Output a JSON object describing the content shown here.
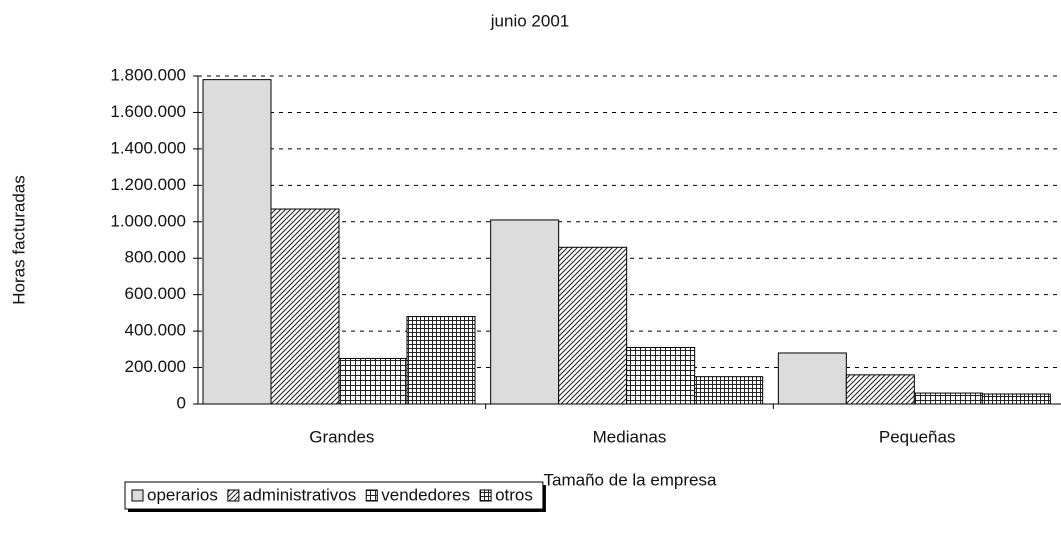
{
  "chart_data": {
    "type": "bar",
    "title": "junio 2001",
    "x_label": "Tamaño de la empresa",
    "y_label": "Horas facturadas",
    "categories": [
      "Grandes",
      "Medianas",
      "Pequeñas"
    ],
    "series": [
      {
        "name": "operarios",
        "color": "#dcdcdc",
        "pattern": "solid",
        "values": [
          1780000,
          1010000,
          280000
        ]
      },
      {
        "name": "administrativos",
        "color": "#ffffff",
        "pattern": "diagonal",
        "values": [
          1070000,
          860000,
          160000
        ]
      },
      {
        "name": "vendedores",
        "color": "#ffffff",
        "pattern": "grid",
        "values": [
          250000,
          310000,
          60000
        ]
      },
      {
        "name": "otros",
        "color": "#ffffff",
        "pattern": "dense-grid",
        "values": [
          480000,
          150000,
          55000
        ]
      }
    ],
    "ylim": [
      0,
      1800000
    ],
    "yticks": [
      0,
      {
        "value": 200000,
        "label": "200.000"
      },
      {
        "value": 400000,
        "label": "400.000"
      },
      {
        "value": 600000,
        "label": "600.000"
      },
      {
        "value": 800000,
        "label": "800.000"
      },
      {
        "value": 1000000,
        "label": "1.000.000"
      },
      {
        "value": 1200000,
        "label": "1.200.000"
      },
      {
        "value": 1400000,
        "label": "1.400.000"
      },
      {
        "value": 1600000,
        "label": "1.600.000"
      },
      {
        "value": 1800000,
        "label": "1.800.000"
      }
    ],
    "grid": true,
    "legend": "bottom-left"
  }
}
